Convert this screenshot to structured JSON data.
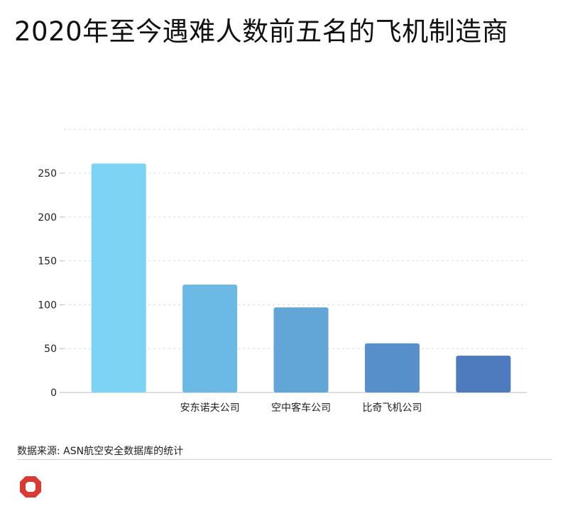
{
  "title": "2020年至今遇难人数前五名的飞机制造商",
  "source": "数据来源: ASN航空安全数据库的统计",
  "chart_data": {
    "type": "bar",
    "title": "2020年至今遇难人数前五名的飞机制造商",
    "categories": [
      "",
      "安东诺夫公司",
      "空中客车公司",
      "比奇飞机公司",
      ""
    ],
    "values": [
      261,
      123,
      97,
      56,
      42
    ],
    "colors": [
      "#7dd3f3",
      "#6bbae5",
      "#62a6d7",
      "#568fc9",
      "#4d7bbd"
    ],
    "yticks": [
      0,
      50,
      100,
      150,
      200,
      250
    ],
    "ylim": [
      0,
      300
    ],
    "grid": true,
    "xlabel": "",
    "ylabel": ""
  }
}
